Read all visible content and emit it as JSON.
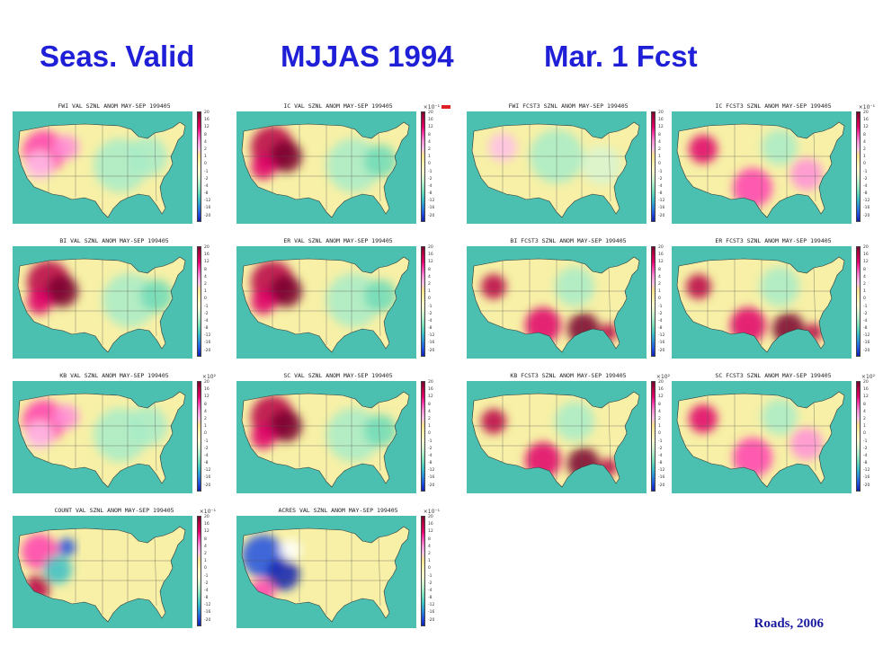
{
  "header": {
    "left": "Seas. Valid",
    "center": "MJJAS 1994",
    "right": "Mar. 1 Fcst"
  },
  "credit": "Roads, 2006",
  "colors": {
    "title_blue": "#1f1fd8",
    "ocean": "#4bbfb0",
    "land_neutral": "#f7f0a6"
  },
  "panels": [
    {
      "id": "fwi-val",
      "title": "FWI VAL SZNL ANOM MAY-SEP 199405",
      "scale": "",
      "pattern": "west-warm"
    },
    {
      "id": "ic-val",
      "title": "IC VAL SZNL ANOM MAY-SEP 199405",
      "scale": "×10⁻¹",
      "pattern": "west-hot"
    },
    {
      "id": "fwi-fcst",
      "title": "FWI FCST3 SZNL ANOM MAY-SEP 199405",
      "scale": "",
      "pattern": "mild"
    },
    {
      "id": "ic-fcst",
      "title": "IC FCST3 SZNL ANOM MAY-SEP 199405",
      "scale": "×10⁻¹",
      "pattern": "south-warm"
    },
    {
      "id": "bi-val",
      "title": "BI VAL SZNL ANOM MAY-SEP 199405",
      "scale": "",
      "pattern": "west-hot"
    },
    {
      "id": "er-val",
      "title": "ER VAL SZNL ANOM MAY-SEP 199405",
      "scale": "",
      "pattern": "west-hot"
    },
    {
      "id": "bi-fcst",
      "title": "BI FCST3 SZNL ANOM MAY-SEP 199405",
      "scale": "",
      "pattern": "south-hot"
    },
    {
      "id": "er-fcst",
      "title": "ER FCST3 SZNL ANOM MAY-SEP 199405",
      "scale": "",
      "pattern": "south-hot"
    },
    {
      "id": "kb-val",
      "title": "KB VAL SZNL ANOM MAY-SEP 199405",
      "scale": "×10²",
      "pattern": "west-warm"
    },
    {
      "id": "sc-val",
      "title": "SC VAL SZNL ANOM MAY-SEP 199405",
      "scale": "",
      "pattern": "west-hot"
    },
    {
      "id": "kb-fcst",
      "title": "KB FCST3 SZNL ANOM MAY-SEP 199405",
      "scale": "×10²",
      "pattern": "south-hot"
    },
    {
      "id": "sc-fcst",
      "title": "SC FCST3 SZNL ANOM MAY-SEP 199405",
      "scale": "×10²",
      "pattern": "south-warm"
    },
    {
      "id": "count-val",
      "title": "COUNT VAL SZNL ANOM MAY-SEP 199405",
      "scale": "×10⁻¹",
      "pattern": "west-mixed"
    },
    {
      "id": "acres-val",
      "title": "ACRES VAL SZNL ANOM MAY-SEP 199405",
      "scale": "×10⁻¹",
      "pattern": "west-blue"
    }
  ],
  "colorbar": {
    "colors": [
      "#7a0030",
      "#b80045",
      "#e0006a",
      "#ff40b0",
      "#ff8fd8",
      "#ffc0e8",
      "#ffe38a",
      "#fff2b0",
      "#fffad0",
      "#d8f5d0",
      "#a8ecc8",
      "#6edcb8",
      "#38c0c8",
      "#2a8cd8",
      "#2050e0",
      "#1020b0"
    ],
    "ticks": [
      "20",
      "16",
      "12",
      "8",
      "4",
      "2",
      "1",
      "0",
      "-1",
      "-2",
      "-4",
      "-8",
      "-12",
      "-16",
      "-20"
    ]
  }
}
